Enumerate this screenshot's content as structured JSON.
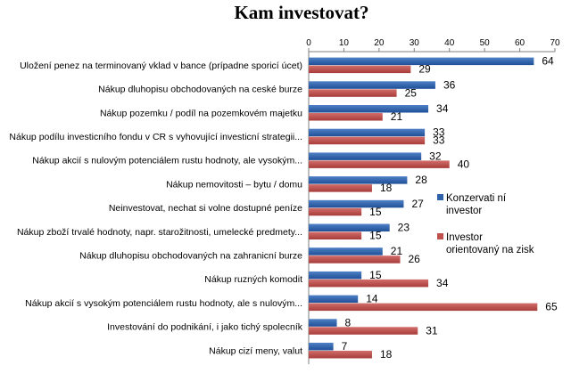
{
  "chart_data": {
    "type": "bar",
    "orientation": "horizontal",
    "title": "Kam investovat?",
    "xlim": [
      0,
      70
    ],
    "xticks": [
      "0",
      "10",
      "20",
      "30",
      "40",
      "50",
      "60",
      "70"
    ],
    "grid": false,
    "legend_position": "right",
    "categories": [
      "Uložení penez na terminovaný vklad v bance (prípadne sporicí úcet)",
      "Nákup dluhopisu obchodovaných na ceské burze",
      "Nákup pozemku / podíl na pozemkovém majetku",
      "Nákup podílu investicního fondu v CR s vyhovující investicní strategii...",
      "Nákup akcií s nulovým potenciálem rustu hodnoty, ale vysokým...",
      "Nákup nemovitosti – bytu / domu",
      "Neinvestovat, nechat si volne dostupné peníze",
      "Nákup zboží trvalé hodnoty, napr. starožitnosti, umelecké predmety...",
      "Nákup dluhopisu obchodovaných na zahranicní burze",
      "Nákup ruzných komodit",
      "Nákup akcií s vysokým potenciálem rustu hodnoty, ale  s nulovým...",
      "Investování do podnikání, i jako tichý spolecník",
      "Nákup cizí meny, valut"
    ],
    "series": [
      {
        "name": "Konzervati ní investor",
        "legend_lines": [
          "Konzervati ní",
          "investor"
        ],
        "color": "#2f62a8",
        "values": [
          64,
          36,
          34,
          33,
          32,
          28,
          27,
          23,
          21,
          15,
          14,
          8,
          7
        ]
      },
      {
        "name": "Investor orientovaný na zisk",
        "legend_lines": [
          "Investor",
          "orientovaný na zisk"
        ],
        "color": "#c0504d",
        "values": [
          29,
          25,
          21,
          33,
          40,
          18,
          15,
          15,
          26,
          34,
          65,
          31,
          18
        ]
      }
    ]
  }
}
